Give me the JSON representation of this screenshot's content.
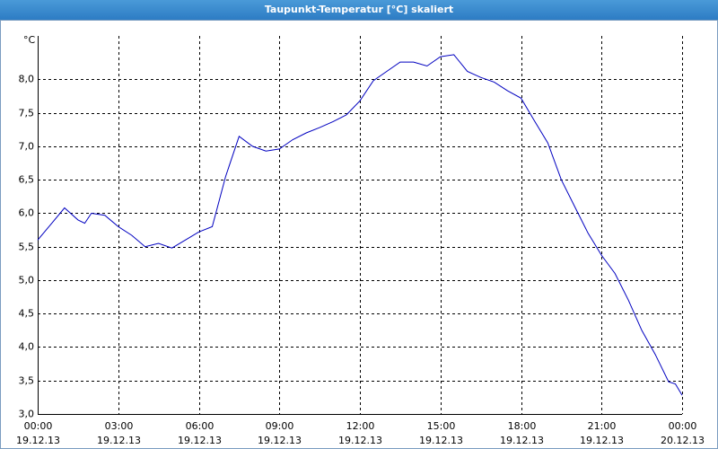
{
  "window_title": "Taupunkt-Temperatur [°C] skaliert",
  "chart_data": {
    "type": "line",
    "y_unit_label": "°C",
    "x": [
      0,
      0.5,
      1,
      1.5,
      1.75,
      2,
      2.5,
      3,
      3.5,
      4,
      4.5,
      5,
      5.5,
      6,
      6.5,
      7,
      7.5,
      8,
      8.5,
      9,
      9.5,
      10,
      10.5,
      11,
      11.5,
      12,
      12.5,
      13,
      13.5,
      14,
      14.5,
      15,
      15.5,
      16,
      16.5,
      17,
      17.5,
      18,
      18.5,
      19,
      19.5,
      20,
      20.5,
      21,
      21.5,
      22,
      22.5,
      23,
      23.5,
      23.75,
      24
    ],
    "series": [
      {
        "color": "#0000c0",
        "values": [
          5.6,
          5.84,
          6.08,
          5.9,
          5.85,
          6.0,
          5.97,
          5.8,
          5.67,
          5.5,
          5.55,
          5.48,
          5.6,
          5.72,
          5.8,
          6.55,
          7.15,
          7.0,
          6.93,
          6.96,
          7.1,
          7.2,
          7.28,
          7.37,
          7.47,
          7.68,
          7.98,
          8.12,
          8.26,
          8.26,
          8.2,
          8.34,
          8.37,
          8.12,
          8.03,
          7.96,
          7.83,
          7.72,
          7.38,
          7.05,
          6.5,
          6.1,
          5.7,
          5.37,
          5.1,
          4.7,
          4.25,
          3.89,
          3.48,
          3.45,
          3.28
        ]
      }
    ],
    "xlim": [
      0,
      24
    ],
    "xticks": [
      {
        "value": 0,
        "label": "00:00"
      },
      {
        "value": 3,
        "label": "03:00"
      },
      {
        "value": 6,
        "label": "06:00"
      },
      {
        "value": 9,
        "label": "09:00"
      },
      {
        "value": 12,
        "label": "12:00"
      },
      {
        "value": 15,
        "label": "15:00"
      },
      {
        "value": 18,
        "label": "18:00"
      },
      {
        "value": 21,
        "label": "21:00"
      },
      {
        "value": 24,
        "label": "00:00"
      }
    ],
    "xtick_dates": [
      "19.12.13",
      "19.12.13",
      "19.12.13",
      "19.12.13",
      "19.12.13",
      "19.12.13",
      "19.12.13",
      "19.12.13",
      "20.12.13"
    ],
    "ylim": [
      3,
      8.65
    ],
    "yticks": [
      {
        "value": 3,
        "label": "3,0"
      },
      {
        "value": 3.5,
        "label": "3,5"
      },
      {
        "value": 4,
        "label": "4,0"
      },
      {
        "value": 4.5,
        "label": "4,5"
      },
      {
        "value": 5,
        "label": "5,0"
      },
      {
        "value": 5.5,
        "label": "5,5"
      },
      {
        "value": 6,
        "label": "6,0"
      },
      {
        "value": 6.5,
        "label": "6,5"
      },
      {
        "value": 7,
        "label": "7,0"
      },
      {
        "value": 7.5,
        "label": "7,5"
      },
      {
        "value": 8,
        "label": "8,0"
      }
    ],
    "grid": true
  }
}
